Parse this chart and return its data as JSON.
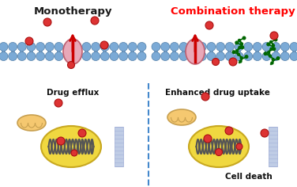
{
  "title_left": "Monotherapy",
  "title_right": "Combination therapy",
  "title_left_color": "#1a1a1a",
  "title_right_color": "#ff0000",
  "label_drug_efflux": "Drug efflux",
  "label_enhanced": "Enhanced drug uptake",
  "label_cell_death": "Cell death",
  "bg_color": "#ffffff",
  "membrane_ball_color": "#7baad6",
  "membrane_ball_outline": "#5580a8",
  "linker_color": "#7baad6",
  "pump_fill": "#e8a8b8",
  "pump_outline": "#c06070",
  "arrow_color": "#cc0000",
  "drug_dot_color": "#dd3333",
  "drug_dot_outline": "#aa1111",
  "dna_color": "#555555",
  "nucleus_fill": "#f0d840",
  "nucleus_outline": "#c8a820",
  "mito_fill": "#f5c870",
  "mito_outline": "#c8a050",
  "beta_peptide_color": "#006600",
  "drug_plate_color": "#aabbdd",
  "dashed_line_color": "#4488cc",
  "text_fontsize": 7.5,
  "title_fontsize": 9.5
}
